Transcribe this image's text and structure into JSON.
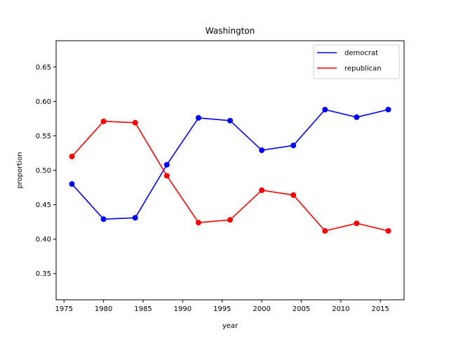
{
  "chart_data": {
    "type": "line",
    "title": "Washington",
    "xlabel": "year",
    "ylabel": "proportion",
    "x": [
      1976,
      1980,
      1984,
      1988,
      1992,
      1996,
      2000,
      2004,
      2008,
      2012,
      2016
    ],
    "xlim": [
      1974.0,
      2018.0
    ],
    "ylim": [
      0.312,
      0.688
    ],
    "xticks": [
      1975,
      1980,
      1985,
      1990,
      1995,
      2000,
      2005,
      2010,
      2015
    ],
    "yticks": [
      0.35,
      0.4,
      0.45,
      0.5,
      0.55,
      0.6,
      0.65
    ],
    "ytick_labels": [
      "0.35",
      "0.40",
      "0.45",
      "0.50",
      "0.55",
      "0.60",
      "0.65"
    ],
    "grid": false,
    "legend_position": "top-right",
    "series": [
      {
        "name": "democrat",
        "color": "#0000ff",
        "values": [
          0.48,
          0.429,
          0.431,
          0.508,
          0.576,
          0.572,
          0.529,
          0.536,
          0.588,
          0.577,
          0.588
        ]
      },
      {
        "name": "republican",
        "color": "#ff0000",
        "values": [
          0.52,
          0.571,
          0.569,
          0.492,
          0.424,
          0.428,
          0.471,
          0.464,
          0.412,
          0.423,
          0.412
        ]
      }
    ]
  }
}
